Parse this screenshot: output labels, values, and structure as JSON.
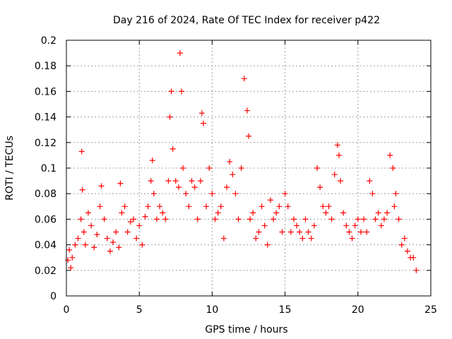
{
  "chart_data": {
    "type": "scatter",
    "title": "Day 216 of 2024, Rate Of TEC Index for receiver p422",
    "xlabel": "GPS time / hours",
    "ylabel": "ROTI / TECUs",
    "xlim": [
      0,
      25
    ],
    "ylim": [
      0,
      0.2
    ],
    "xticks": [
      "0",
      "5",
      "10",
      "15",
      "20",
      "25"
    ],
    "yticks": [
      "0",
      "0.02",
      "0.04",
      "0.06",
      "0.08",
      "0.1",
      "0.12",
      "0.14",
      "0.16",
      "0.18",
      "0.2"
    ],
    "grid": true,
    "marker": "+",
    "color": "#ff0000",
    "series": [
      {
        "x": [
          0.1,
          0.2,
          0.3,
          0.4,
          0.6,
          0.8,
          1.0,
          1.05,
          1.1,
          1.2,
          1.3,
          1.5,
          1.7,
          1.9,
          2.1,
          2.3,
          2.4,
          2.6,
          2.8,
          3.0,
          3.2,
          3.4,
          3.6,
          3.7,
          3.8,
          4.0,
          4.2,
          4.4,
          4.6,
          4.8,
          5.0,
          5.2,
          5.4,
          5.6,
          5.8,
          5.9,
          6.0,
          6.2,
          6.4,
          6.6,
          6.8,
          7.0,
          7.1,
          7.2,
          7.3,
          7.5,
          7.7,
          7.8,
          7.9,
          8.0,
          8.2,
          8.4,
          8.6,
          8.8,
          9.0,
          9.2,
          9.3,
          9.4,
          9.6,
          9.8,
          10.0,
          10.2,
          10.4,
          10.6,
          10.8,
          11.0,
          11.2,
          11.4,
          11.6,
          11.8,
          12.0,
          12.2,
          12.4,
          12.5,
          12.6,
          12.8,
          13.0,
          13.2,
          13.4,
          13.6,
          13.8,
          14.0,
          14.2,
          14.4,
          14.6,
          14.8,
          15.0,
          15.2,
          15.4,
          15.6,
          15.8,
          16.0,
          16.2,
          16.4,
          16.6,
          16.8,
          17.0,
          17.2,
          17.4,
          17.6,
          17.8,
          18.0,
          18.2,
          18.4,
          18.6,
          18.7,
          18.8,
          19.0,
          19.2,
          19.4,
          19.6,
          19.8,
          20.0,
          20.2,
          20.4,
          20.6,
          20.8,
          21.0,
          21.2,
          21.4,
          21.6,
          21.8,
          22.0,
          22.2,
          22.4,
          22.5,
          22.6,
          22.8,
          23.0,
          23.2,
          23.4,
          23.6,
          23.8,
          24.0
        ],
        "y": [
          0.028,
          0.036,
          0.022,
          0.03,
          0.04,
          0.045,
          0.06,
          0.113,
          0.083,
          0.05,
          0.04,
          0.065,
          0.055,
          0.038,
          0.048,
          0.07,
          0.086,
          0.06,
          0.045,
          0.035,
          0.042,
          0.05,
          0.038,
          0.088,
          0.065,
          0.07,
          0.05,
          0.058,
          0.06,
          0.045,
          0.055,
          0.04,
          0.062,
          0.07,
          0.09,
          0.106,
          0.08,
          0.06,
          0.07,
          0.065,
          0.06,
          0.09,
          0.14,
          0.16,
          0.115,
          0.09,
          0.085,
          0.19,
          0.16,
          0.1,
          0.08,
          0.07,
          0.09,
          0.085,
          0.06,
          0.09,
          0.143,
          0.135,
          0.07,
          0.1,
          0.08,
          0.06,
          0.065,
          0.07,
          0.045,
          0.085,
          0.105,
          0.095,
          0.08,
          0.06,
          0.1,
          0.17,
          0.145,
          0.125,
          0.06,
          0.065,
          0.045,
          0.05,
          0.07,
          0.055,
          0.04,
          0.075,
          0.06,
          0.065,
          0.07,
          0.05,
          0.08,
          0.07,
          0.05,
          0.06,
          0.055,
          0.05,
          0.045,
          0.06,
          0.05,
          0.045,
          0.055,
          0.1,
          0.085,
          0.07,
          0.065,
          0.07,
          0.06,
          0.095,
          0.118,
          0.11,
          0.09,
          0.065,
          0.055,
          0.05,
          0.045,
          0.055,
          0.06,
          0.05,
          0.06,
          0.05,
          0.09,
          0.08,
          0.06,
          0.065,
          0.055,
          0.06,
          0.065,
          0.11,
          0.1,
          0.07,
          0.08,
          0.06,
          0.04,
          0.045,
          0.035,
          0.03,
          0.03,
          0.02
        ]
      }
    ]
  }
}
